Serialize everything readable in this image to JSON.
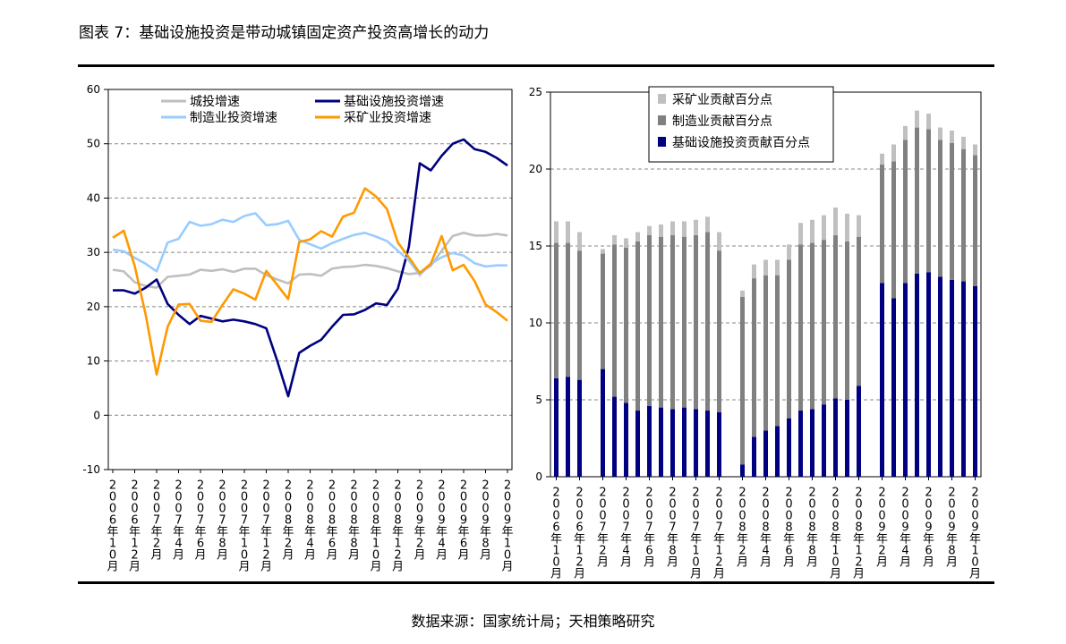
{
  "figure_title": "图表 7：基础设施投资是带动城镇固定资产投资高增长的动力",
  "source": "数据来源：国家统计局；天相策略研究",
  "chart_data": [
    {
      "type": "line",
      "x": [
        "2006年10月",
        "2006年11月",
        "2006年12月",
        "2007年1月",
        "2007年2月",
        "2007年3月",
        "2007年4月",
        "2007年5月",
        "2007年6月",
        "2007年7月",
        "2007年8月",
        "2007年9月",
        "2007年10月",
        "2007年11月",
        "2007年12月",
        "2008年1月",
        "2008年2月",
        "2008年3月",
        "2008年4月",
        "2008年5月",
        "2008年6月",
        "2008年7月",
        "2008年8月",
        "2008年9月",
        "2008年10月",
        "2008年11月",
        "2008年12月",
        "2009年1月",
        "2009年2月",
        "2009年3月",
        "2009年4月",
        "2009年5月",
        "2009年6月",
        "2009年7月",
        "2009年8月",
        "2009年9月",
        "2009年10月"
      ],
      "tick_labels": [
        "2006年10月",
        "2006年12月",
        "2007年2月",
        "2007年4月",
        "2007年6月",
        "2007年8月",
        "2007年10月",
        "2007年12月",
        "2008年2月",
        "2008年4月",
        "2008年6月",
        "2008年8月",
        "2008年10月",
        "2008年12月",
        "2009年2月",
        "2009年4月",
        "2009年6月",
        "2009年8月",
        "2009年10月"
      ],
      "ylim": [
        -10,
        60
      ],
      "yticks": [
        -10,
        0,
        10,
        20,
        30,
        40,
        50,
        60
      ],
      "grid": "horizontal-dashed",
      "legend_position": "top",
      "series": [
        {
          "name": "城投增速",
          "color": "#bfbfbf",
          "values": [
            26.8,
            26.5,
            24.5,
            23.8,
            23.5,
            25.5,
            25.7,
            25.9,
            26.8,
            26.6,
            26.9,
            26.4,
            27.0,
            27.0,
            25.8,
            25.0,
            24.3,
            25.9,
            26.0,
            25.7,
            27.0,
            27.3,
            27.4,
            27.7,
            27.5,
            27.1,
            26.5,
            26.0,
            26.2,
            27.5,
            30.3,
            33.0,
            33.6,
            33.1,
            33.1,
            33.4,
            33.1
          ]
        },
        {
          "name": "基础设施投资增速",
          "color": "#000080",
          "values": [
            23.0,
            23.0,
            22.4,
            23.5,
            25.0,
            20.5,
            18.5,
            16.8,
            18.3,
            17.8,
            17.3,
            17.6,
            17.3,
            16.8,
            16.0,
            10.0,
            3.5,
            11.5,
            12.8,
            13.9,
            16.3,
            18.5,
            18.6,
            19.4,
            20.6,
            20.3,
            23.3,
            31.0,
            46.4,
            45.1,
            47.8,
            50.0,
            50.8,
            49.0,
            48.5,
            47.4,
            46.0
          ]
        },
        {
          "name": "制造业投资增速",
          "color": "#99ccff",
          "values": [
            30.5,
            30.2,
            29.0,
            27.9,
            26.5,
            31.8,
            32.5,
            35.6,
            34.9,
            35.2,
            36.0,
            35.6,
            36.7,
            37.2,
            35.0,
            35.2,
            35.8,
            32.3,
            31.5,
            30.7,
            31.7,
            32.5,
            33.2,
            33.6,
            32.9,
            32.1,
            30.3,
            28.5,
            25.8,
            27.9,
            29.1,
            29.9,
            29.4,
            28.0,
            27.4,
            27.6,
            27.6
          ]
        },
        {
          "name": "采矿业投资增速",
          "color": "#ff9900",
          "values": [
            32.7,
            34.0,
            27.5,
            18.5,
            7.5,
            16.3,
            20.4,
            20.5,
            17.4,
            17.2,
            20.3,
            23.2,
            22.4,
            21.3,
            26.6,
            24.0,
            21.4,
            31.9,
            32.4,
            33.9,
            32.9,
            36.6,
            37.3,
            41.8,
            40.3,
            38.0,
            31.8,
            29.1,
            26.2,
            27.9,
            33.0,
            26.7,
            27.7,
            24.7,
            20.4,
            19.0,
            17.4
          ]
        }
      ]
    },
    {
      "type": "bar",
      "stacked": true,
      "x": [
        "2006年10月",
        "2006年11月",
        "2006年12月",
        "2007年1月",
        "2007年2月",
        "2007年3月",
        "2007年4月",
        "2007年5月",
        "2007年6月",
        "2007年7月",
        "2007年8月",
        "2007年9月",
        "2007年10月",
        "2007年11月",
        "2007年12月",
        "2008年1月",
        "2008年2月",
        "2008年3月",
        "2008年4月",
        "2008年5月",
        "2008年6月",
        "2008年7月",
        "2008年8月",
        "2008年9月",
        "2008年10月",
        "2008年11月",
        "2008年12月",
        "2009年1月",
        "2009年2月",
        "2009年3月",
        "2009年4月",
        "2009年5月",
        "2009年6月",
        "2009年7月",
        "2009年8月",
        "2009年9月",
        "2009年10月"
      ],
      "tick_labels": [
        "2006年10月",
        "2006年12月",
        "2007年2月",
        "2007年4月",
        "2007年6月",
        "2007年8月",
        "2007年10月",
        "2007年12月",
        "2008年2月",
        "2008年4月",
        "2008年6月",
        "2008年8月",
        "2008年10月",
        "2008年12月",
        "2009年2月",
        "2009年4月",
        "2009年6月",
        "2009年8月",
        "2009年10月"
      ],
      "ylim": [
        0,
        25
      ],
      "yticks": [
        0,
        5,
        10,
        15,
        20,
        25
      ],
      "grid": "horizontal-dashed",
      "legend_position": "top",
      "series": [
        {
          "name": "采矿业贡献百分点",
          "color": "#c0c0c0",
          "values": [
            1.4,
            1.4,
            1.2,
            null,
            0.3,
            0.6,
            0.6,
            0.6,
            0.6,
            0.8,
            0.9,
            1.0,
            1.0,
            1.0,
            1.2,
            null,
            0.4,
            0.9,
            1.0,
            1.0,
            1.0,
            1.4,
            1.5,
            1.6,
            1.8,
            1.8,
            1.4,
            null,
            0.7,
            1.1,
            0.9,
            1.1,
            1.0,
            0.8,
            0.8,
            0.8,
            0.7
          ]
        },
        {
          "name": "制造业贡献百分点",
          "color": "#808080",
          "values": [
            8.8,
            8.7,
            8.4,
            null,
            7.5,
            9.9,
            10.1,
            11.0,
            11.1,
            11.1,
            11.3,
            11.1,
            11.3,
            11.6,
            10.5,
            null,
            10.9,
            10.3,
            10.1,
            9.8,
            10.3,
            10.8,
            10.8,
            10.7,
            10.6,
            10.3,
            9.7,
            null,
            7.7,
            8.9,
            9.3,
            9.5,
            9.3,
            8.9,
            8.9,
            8.6,
            8.5
          ]
        },
        {
          "name": "基础设施投资贡献百分点",
          "color": "#000080",
          "values": [
            6.4,
            6.5,
            6.3,
            null,
            7.0,
            5.2,
            4.8,
            4.3,
            4.6,
            4.5,
            4.4,
            4.5,
            4.4,
            4.3,
            4.2,
            null,
            0.8,
            2.6,
            3.0,
            3.3,
            3.8,
            4.3,
            4.4,
            4.7,
            5.1,
            5.0,
            5.9,
            null,
            12.6,
            11.6,
            12.6,
            13.2,
            13.3,
            13.0,
            12.8,
            12.7,
            12.4
          ]
        }
      ]
    }
  ]
}
